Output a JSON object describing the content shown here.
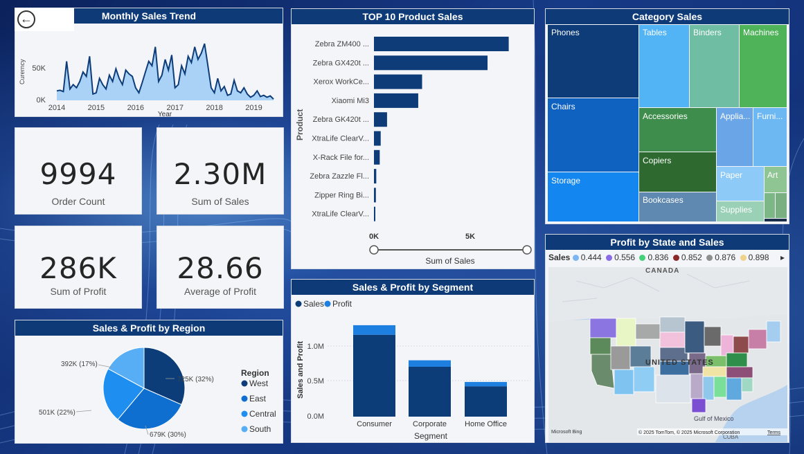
{
  "navigation": {
    "back_icon": "back-arrow-icon"
  },
  "monthly_trend": {
    "title": "Monthly Sales Trend",
    "ylabel": "Curerncy",
    "xlabel": "Year",
    "y_ticks": [
      "0K",
      "50K"
    ],
    "x_ticks": [
      "2014",
      "2015",
      "2016",
      "2017",
      "2018",
      "2019"
    ]
  },
  "kpis": [
    {
      "value": "9994",
      "label": "Order Count"
    },
    {
      "value": "2.30M",
      "label": "Sum of Sales"
    },
    {
      "value": "286K",
      "label": "Sum of Profit"
    },
    {
      "value": "28.66",
      "label": "Average of Profit"
    }
  ],
  "top10": {
    "title": "TOP 10 Product Sales",
    "ylabel": "Product",
    "xlabel": "Sum of Sales",
    "x_ticks": [
      "0K",
      "5K"
    ]
  },
  "category": {
    "title": "Category Sales",
    "items": [
      "Phones",
      "Tables",
      "Binders",
      "Machines",
      "Chairs",
      "Accessories",
      "Applia...",
      "Furni...",
      "Copiers",
      "Storage",
      "Paper",
      "Art",
      "Bookcases",
      "Supplies"
    ]
  },
  "region": {
    "title": "Sales & Profit by Region",
    "legend_title": "Region",
    "slice_labels": [
      "725K (32%)",
      "679K (30%)",
      "501K (22%)",
      "392K (17%)"
    ]
  },
  "segment": {
    "title": "Sales & Profit by Segment",
    "legend": [
      "Sales",
      "Profit"
    ],
    "ylabel": "Sales and Profit",
    "xlabel": "Segment",
    "y_ticks": [
      "0.0M",
      "0.5M",
      "1.0M"
    ]
  },
  "map": {
    "title": "Profit by State and Sales",
    "legend_label": "Sales",
    "legend_values": [
      "0.444",
      "0.556",
      "0.836",
      "0.852",
      "0.876",
      "0.898"
    ],
    "legend_colors": [
      "#7cb6f2",
      "#8b6ce6",
      "#45d07a",
      "#8a2a2a",
      "#8f8f8f",
      "#f1d28a"
    ],
    "labels": {
      "canada": "CANADA",
      "us": "UNITED STATES",
      "gulf": "Gulf of\nMexico",
      "cuba": "CUBA"
    },
    "bing": "Microsoft Bing",
    "copyright": "© 2025 TomTom, © 2025 Microsoft Corporation",
    "terms": "Terms"
  },
  "chart_data": [
    {
      "type": "area",
      "title": "Monthly Sales Trend",
      "xlabel": "Year",
      "ylabel": "Curerncy",
      "ylim": [
        0,
        100000
      ],
      "x": [
        "2014-01",
        "2014-02",
        "2014-03",
        "2014-04",
        "2014-05",
        "2014-06",
        "2014-07",
        "2014-08",
        "2014-09",
        "2014-10",
        "2014-11",
        "2014-12",
        "2015-01",
        "2015-02",
        "2015-03",
        "2015-04",
        "2015-05",
        "2015-06",
        "2015-07",
        "2015-08",
        "2015-09",
        "2015-10",
        "2015-11",
        "2015-12",
        "2016-01",
        "2016-02",
        "2016-03",
        "2016-04",
        "2016-05",
        "2016-06",
        "2016-07",
        "2016-08",
        "2016-09",
        "2016-10",
        "2016-11",
        "2016-12",
        "2017-01",
        "2017-02",
        "2017-03",
        "2017-04",
        "2017-05",
        "2017-06",
        "2017-07",
        "2017-08",
        "2017-09",
        "2017-10",
        "2017-11",
        "2017-12",
        "2018-01",
        "2018-02",
        "2018-03",
        "2018-04",
        "2018-05",
        "2018-06",
        "2018-07",
        "2018-08",
        "2018-09",
        "2018-10",
        "2018-11",
        "2018-12",
        "2019-01",
        "2019-02",
        "2019-03",
        "2019-04",
        "2019-05",
        "2019-06",
        "2019-07"
      ],
      "values": [
        15000,
        16000,
        14000,
        62000,
        18000,
        25000,
        20000,
        30000,
        45000,
        38000,
        70000,
        10000,
        12000,
        35000,
        25000,
        18000,
        40000,
        30000,
        50000,
        35000,
        25000,
        48000,
        42000,
        38000,
        20000,
        12000,
        28000,
        45000,
        62000,
        55000,
        85000,
        30000,
        40000,
        65000,
        48000,
        72000,
        20000,
        25000,
        55000,
        42000,
        70000,
        60000,
        85000,
        65000,
        75000,
        90000,
        55000,
        20000,
        12000,
        35000,
        15000,
        22000,
        8000,
        10000,
        32000,
        15000,
        12000,
        20000,
        10000,
        5000,
        8000,
        15000,
        6000,
        8000,
        5000,
        7000,
        2000
      ]
    },
    {
      "type": "bar",
      "orientation": "horizontal",
      "title": "TOP 10 Product Sales",
      "xlabel": "Sum of Sales",
      "ylabel": "Product",
      "categories": [
        "Zebra ZM400 ...",
        "Zebra GX420t ...",
        "Xerox WorkCe...",
        "Xiaomi Mi3",
        "Zebra GK420t ...",
        "XtraLife ClearV...",
        "X-Rack File for...",
        "Zebra Zazzle Fl...",
        "Zipper Ring Bi...",
        "XtraLife ClearV..."
      ],
      "values": [
        7000,
        5900,
        2500,
        2300,
        680,
        350,
        300,
        120,
        100,
        70
      ],
      "xlim": [
        0,
        8000
      ]
    },
    {
      "type": "pie",
      "title": "Sales & Profit by Region",
      "legend_title": "Region",
      "categories": [
        "West",
        "East",
        "Central",
        "South"
      ],
      "values": [
        725,
        679,
        501,
        392
      ],
      "colors": [
        "#0c3d79",
        "#0f6fd0",
        "#1e8ff0",
        "#57aef5"
      ]
    },
    {
      "type": "bar",
      "stacked": true,
      "title": "Sales & Profit by Segment",
      "xlabel": "Segment",
      "ylabel": "Sales and Profit",
      "categories": [
        "Consumer",
        "Corporate",
        "Home Office"
      ],
      "series": [
        {
          "name": "Sales",
          "values": [
            1160000,
            706000,
            430000
          ]
        },
        {
          "name": "Profit",
          "values": [
            135000,
            92000,
            61000
          ]
        }
      ],
      "ylim": [
        0,
        1350000
      ],
      "colors": [
        "#0c3d79",
        "#1d7fe0"
      ]
    },
    {
      "type": "heatmap",
      "title": "Category Sales",
      "categories": [
        "Phones",
        "Tables",
        "Binders",
        "Machines",
        "Chairs",
        "Accessories",
        "Applia...",
        "Furni...",
        "Copiers",
        "Storage",
        "Paper",
        "Art",
        "Bookcases",
        "Supplies"
      ]
    }
  ]
}
